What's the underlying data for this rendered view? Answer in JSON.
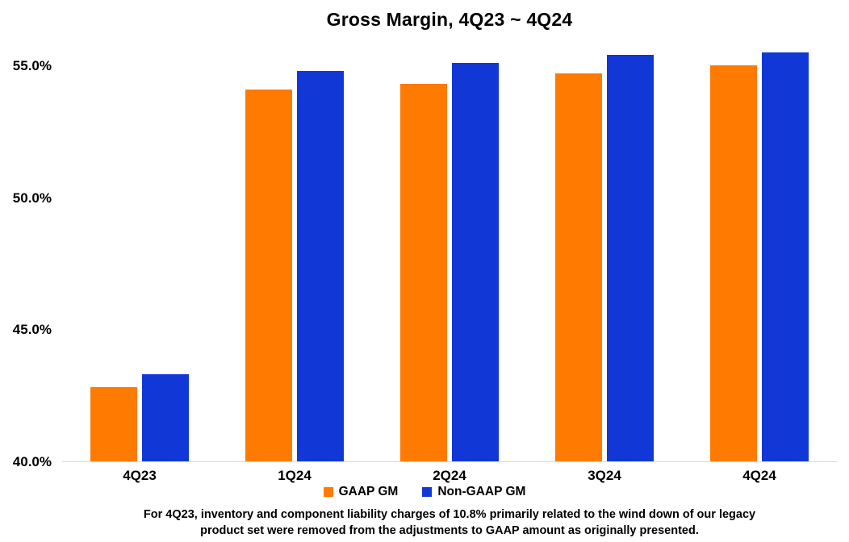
{
  "chart_data": {
    "type": "bar",
    "title": "Gross Margin, 4Q23 ~ 4Q24",
    "categories": [
      "4Q23",
      "1Q24",
      "2Q24",
      "3Q24",
      "4Q24"
    ],
    "series": [
      {
        "name": "GAAP GM",
        "color": "#FF7A00",
        "values": [
          42.8,
          54.1,
          54.3,
          54.7,
          55.0
        ]
      },
      {
        "name": "Non-GAAP GM",
        "color": "#1138D6",
        "values": [
          43.3,
          54.8,
          55.1,
          55.4,
          55.5
        ]
      }
    ],
    "ylim": [
      40,
      55.8
    ],
    "yticks": [
      {
        "value": 40,
        "label": "40.0%"
      },
      {
        "value": 45,
        "label": "45.0%"
      },
      {
        "value": 50,
        "label": "50.0%"
      },
      {
        "value": 55,
        "label": "55.0%"
      }
    ],
    "grid": false,
    "legend_position": "bottom",
    "axis_line_color": "#d9d9d9",
    "footnote_line1": "For 4Q23, inventory and component liability charges of 10.8% primarily related to the wind down of our legacy",
    "footnote_line2": "product set were removed from the adjustments to GAAP amount as originally presented."
  }
}
